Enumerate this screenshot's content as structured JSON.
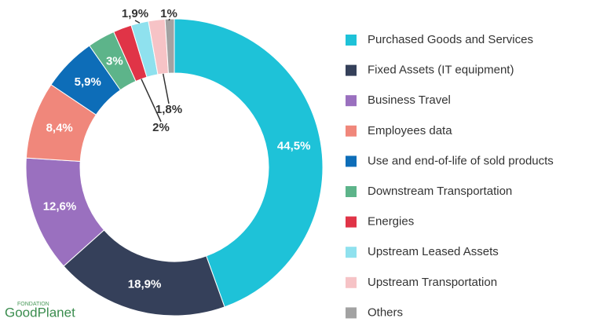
{
  "chart_data": {
    "type": "donut",
    "categories": [
      "Purchased Goods and Services",
      "Fixed Assets (IT equipment)",
      "Business Travel",
      "Employees data",
      "Use and end-of-life of sold products",
      "Downstream Transportation",
      "Energies",
      "Upstream Leased Assets",
      "Upstream Transportation",
      "Others"
    ],
    "values": [
      44.5,
      18.9,
      12.6,
      8.4,
      5.9,
      3,
      2,
      1.9,
      1.8,
      1
    ],
    "value_labels": [
      "44,5%",
      "18,9%",
      "12,6%",
      "8,4%",
      "5,9%",
      "3%",
      "2%",
      "1,9%",
      "1,8%",
      "1%"
    ],
    "colors": [
      "#1ec2d8",
      "#35405a",
      "#9a70bf",
      "#f0877b",
      "#0d6db8",
      "#5db48a",
      "#e03447",
      "#8fe1ee",
      "#f6c3c6",
      "#a2a2a2"
    ],
    "legend": "right"
  },
  "brand": {
    "overline": "FONDATION",
    "name": "GoodPlanet"
  }
}
